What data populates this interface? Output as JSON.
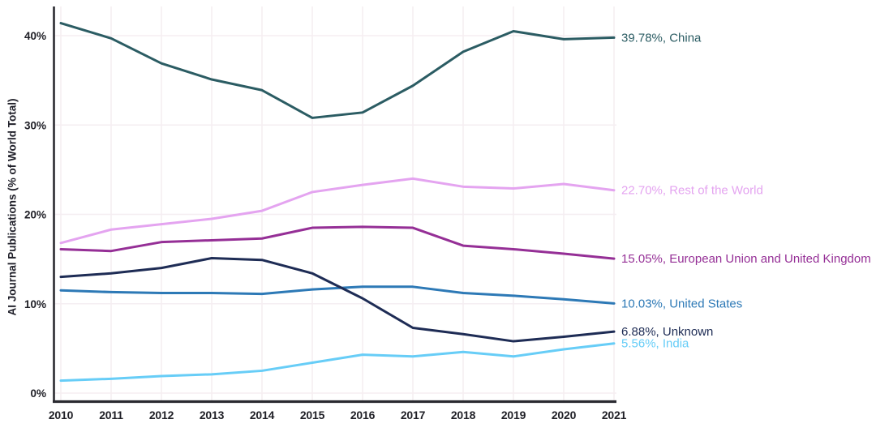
{
  "chart_data": {
    "type": "line",
    "title": "",
    "ylabel": "AI Journal Publications (% of World Total)",
    "xlabel": "",
    "x": [
      2010,
      2011,
      2012,
      2013,
      2014,
      2015,
      2016,
      2017,
      2018,
      2019,
      2020,
      2021
    ],
    "x_tick_labels": [
      "2010",
      "2011",
      "2012",
      "2013",
      "2014",
      "2015",
      "2016",
      "2017",
      "2018",
      "2019",
      "2020",
      "2021"
    ],
    "y_ticks": [
      0,
      10,
      20,
      30,
      40
    ],
    "y_tick_labels": [
      "0%",
      "10%",
      "20%",
      "30%",
      "40%"
    ],
    "ylim": [
      0,
      43.3
    ],
    "grid": true,
    "legend_position": "end-of-line-labels-right",
    "series": [
      {
        "name": "China",
        "color": "#2b5c63",
        "end_label": "39.78%, China",
        "end_value": "39.78%",
        "values": [
          41.4,
          39.7,
          36.9,
          35.1,
          33.9,
          30.8,
          31.4,
          34.4,
          38.2,
          40.5,
          39.6,
          39.78
        ]
      },
      {
        "name": "Rest of the World",
        "color": "#e4a4f0",
        "end_label": "22.70%, Rest of the World",
        "end_value": "22.70%",
        "values": [
          16.8,
          18.3,
          18.9,
          19.5,
          20.4,
          22.5,
          23.3,
          24.0,
          23.1,
          22.9,
          23.4,
          22.7
        ]
      },
      {
        "name": "European Union and United Kingdom",
        "color": "#952f96",
        "end_label": "15.05%, European Union and United Kingdom",
        "end_value": "15.05%",
        "values": [
          16.1,
          15.9,
          16.9,
          17.1,
          17.3,
          18.5,
          18.6,
          18.5,
          16.5,
          16.1,
          15.6,
          15.05
        ]
      },
      {
        "name": "United States",
        "color": "#2d79b6",
        "end_label": "10.03%, United States",
        "end_value": "10.03%",
        "values": [
          11.5,
          11.3,
          11.2,
          11.2,
          11.1,
          11.6,
          11.9,
          11.9,
          11.2,
          10.9,
          10.5,
          10.03
        ]
      },
      {
        "name": "Unknown",
        "color": "#1e2c55",
        "end_label": "6.88%, Unknown",
        "end_value": "6.88%",
        "values": [
          13.0,
          13.4,
          14.0,
          15.1,
          14.9,
          13.4,
          10.6,
          7.3,
          6.6,
          5.8,
          6.3,
          6.88
        ]
      },
      {
        "name": "India",
        "color": "#67cdf7",
        "end_label": "5.56%, India",
        "end_value": "5.56%",
        "values": [
          1.4,
          1.6,
          1.9,
          2.1,
          2.5,
          3.4,
          4.3,
          4.1,
          4.6,
          4.1,
          4.9,
          5.56
        ]
      }
    ],
    "colors": {
      "axis": "#2a2a30",
      "grid": "#f5eef2",
      "tick_text": "#1f1f26"
    }
  }
}
